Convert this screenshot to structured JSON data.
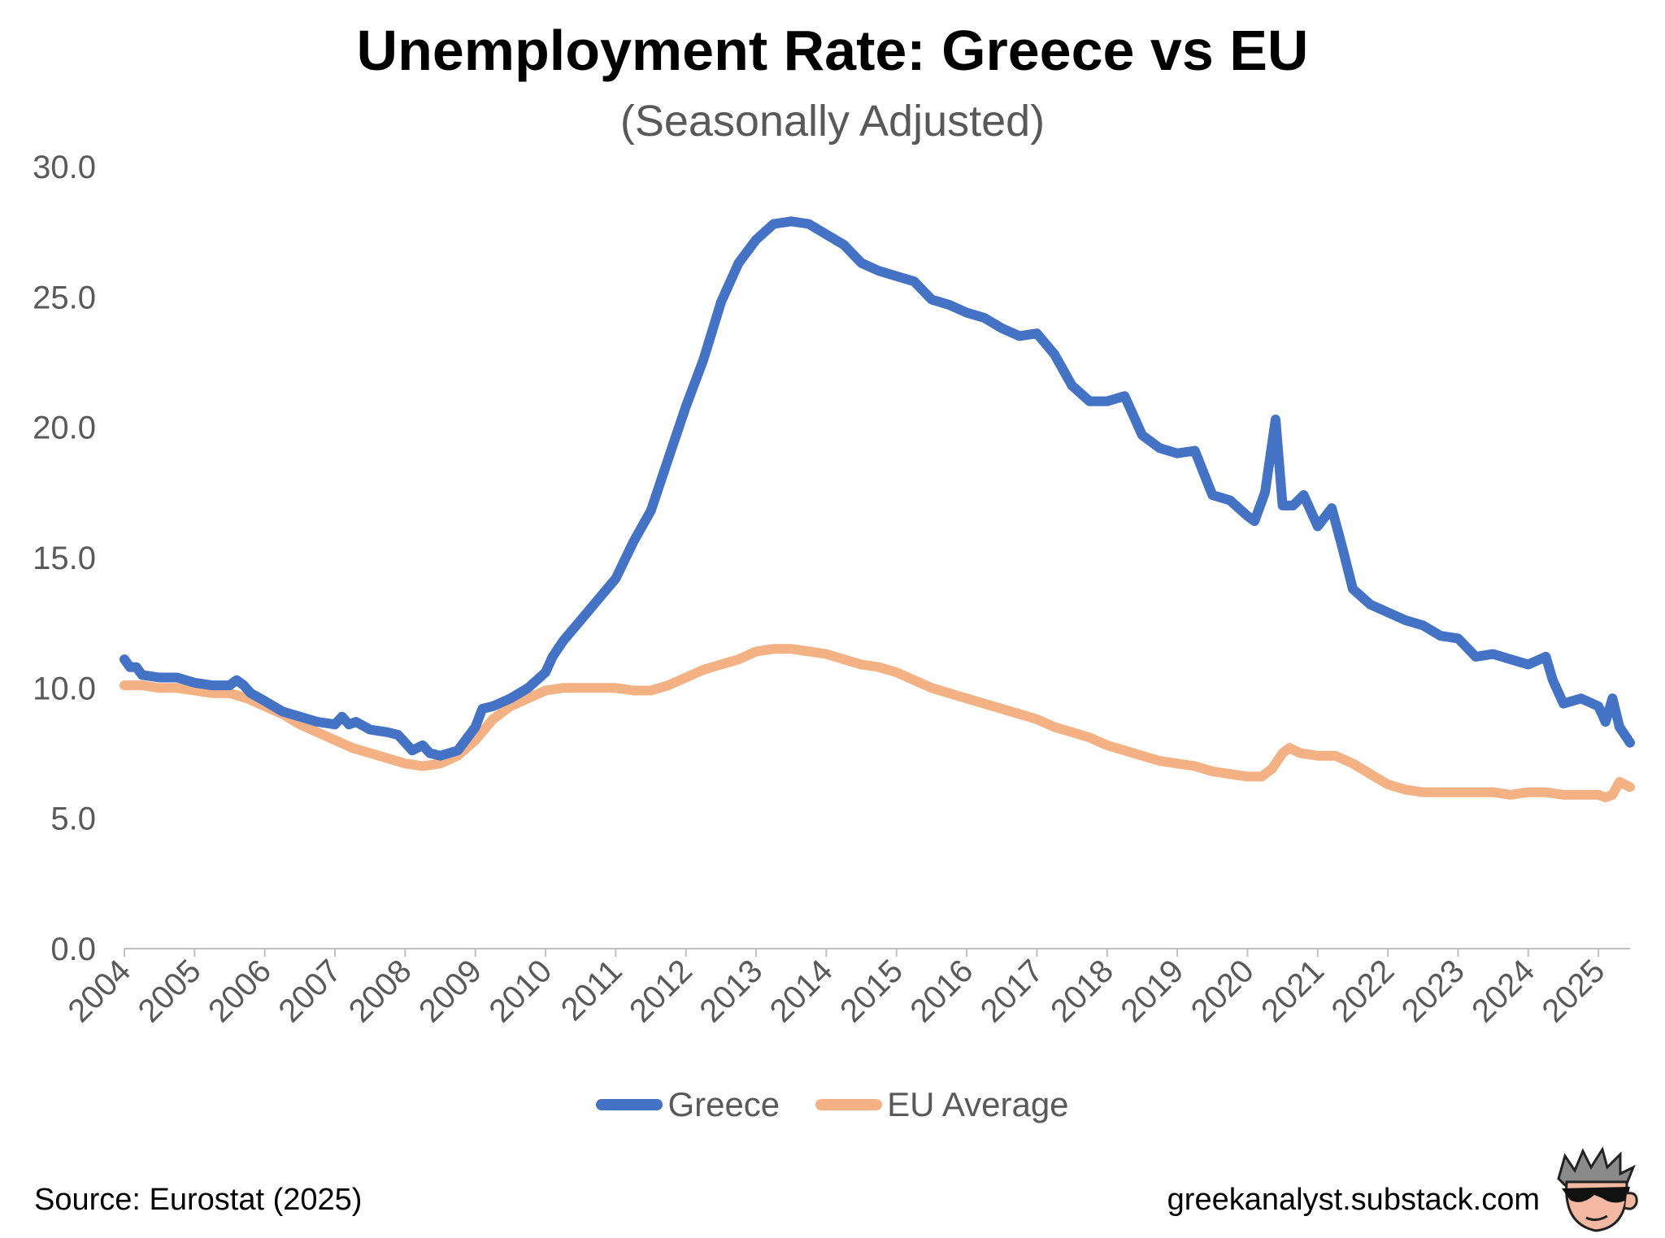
{
  "title": "Unemployment Rate: Greece vs EU",
  "subtitle": "(Seasonally Adjusted)",
  "source": "Source: Eurostat (2025)",
  "site": "greekanalyst.substack.com",
  "chart_data": {
    "type": "line",
    "ylim": [
      0,
      30
    ],
    "yticks": [
      "0.0",
      "5.0",
      "10.0",
      "15.0",
      "20.0",
      "25.0",
      "30.0"
    ],
    "xlim": [
      2004,
      2025.45
    ],
    "xticks": [
      "2004",
      "2005",
      "2006",
      "2007",
      "2008",
      "2009",
      "2010",
      "2011",
      "2012",
      "2013",
      "2014",
      "2015",
      "2016",
      "2017",
      "2018",
      "2019",
      "2020",
      "2021",
      "2022",
      "2023",
      "2024",
      "2025"
    ],
    "legend": "bottom",
    "grid": false,
    "series": [
      {
        "name": "Greece",
        "color": "#4472C4",
        "x": [
          2004.0,
          2004.08,
          2004.17,
          2004.25,
          2004.5,
          2004.75,
          2005.0,
          2005.25,
          2005.5,
          2005.6,
          2005.7,
          2005.8,
          2006.0,
          2006.25,
          2006.5,
          2006.75,
          2007.0,
          2007.1,
          2007.2,
          2007.3,
          2007.5,
          2007.75,
          2007.9,
          2008.0,
          2008.1,
          2008.25,
          2008.35,
          2008.5,
          2008.75,
          2009.0,
          2009.1,
          2009.25,
          2009.5,
          2009.75,
          2010.0,
          2010.1,
          2010.25,
          2010.5,
          2010.75,
          2011.0,
          2011.25,
          2011.5,
          2011.75,
          2012.0,
          2012.25,
          2012.5,
          2012.75,
          2013.0,
          2013.25,
          2013.5,
          2013.75,
          2014.0,
          2014.25,
          2014.5,
          2014.75,
          2015.0,
          2015.25,
          2015.5,
          2015.75,
          2016.0,
          2016.25,
          2016.5,
          2016.75,
          2017.0,
          2017.25,
          2017.5,
          2017.75,
          2018.0,
          2018.25,
          2018.5,
          2018.75,
          2019.0,
          2019.25,
          2019.5,
          2019.75,
          2020.0,
          2020.1,
          2020.25,
          2020.4,
          2020.5,
          2020.65,
          2020.8,
          2021.0,
          2021.2,
          2021.35,
          2021.5,
          2021.75,
          2022.0,
          2022.25,
          2022.5,
          2022.75,
          2023.0,
          2023.25,
          2023.5,
          2023.75,
          2024.0,
          2024.25,
          2024.35,
          2024.5,
          2024.75,
          2025.0,
          2025.1,
          2025.2,
          2025.3,
          2025.45
        ],
        "values": [
          11.1,
          10.8,
          10.8,
          10.5,
          10.4,
          10.4,
          10.2,
          10.1,
          10.1,
          10.3,
          10.1,
          9.8,
          9.5,
          9.1,
          8.9,
          8.7,
          8.6,
          8.9,
          8.6,
          8.7,
          8.4,
          8.3,
          8.2,
          7.9,
          7.6,
          7.8,
          7.5,
          7.4,
          7.6,
          8.5,
          9.2,
          9.3,
          9.6,
          10.0,
          10.6,
          11.2,
          11.8,
          12.6,
          13.4,
          14.2,
          15.6,
          16.8,
          18.8,
          20.8,
          22.6,
          24.8,
          26.3,
          27.2,
          27.8,
          27.9,
          27.8,
          27.4,
          27.0,
          26.3,
          26.0,
          25.8,
          25.6,
          24.9,
          24.7,
          24.4,
          24.2,
          23.8,
          23.5,
          23.6,
          22.8,
          21.6,
          21.0,
          21.0,
          21.2,
          19.7,
          19.2,
          19.0,
          19.1,
          17.4,
          17.2,
          16.6,
          16.4,
          17.5,
          20.3,
          17.0,
          17.0,
          17.4,
          16.2,
          16.9,
          15.4,
          13.8,
          13.2,
          12.9,
          12.6,
          12.4,
          12.0,
          11.9,
          11.2,
          11.3,
          11.1,
          10.9,
          11.2,
          10.3,
          9.4,
          9.6,
          9.3,
          8.7,
          9.6,
          8.5,
          7.9
        ]
      },
      {
        "name": "EU Average",
        "color": "#F4B183",
        "x": [
          2004.0,
          2004.25,
          2004.5,
          2004.75,
          2005.0,
          2005.25,
          2005.5,
          2005.75,
          2006.0,
          2006.25,
          2006.5,
          2006.75,
          2007.0,
          2007.25,
          2007.5,
          2007.75,
          2008.0,
          2008.25,
          2008.5,
          2008.75,
          2009.0,
          2009.25,
          2009.5,
          2009.75,
          2010.0,
          2010.25,
          2010.5,
          2010.75,
          2011.0,
          2011.25,
          2011.5,
          2011.75,
          2012.0,
          2012.25,
          2012.5,
          2012.75,
          2013.0,
          2013.25,
          2013.5,
          2013.75,
          2014.0,
          2014.25,
          2014.5,
          2014.75,
          2015.0,
          2015.25,
          2015.5,
          2015.75,
          2016.0,
          2016.25,
          2016.5,
          2016.75,
          2017.0,
          2017.25,
          2017.5,
          2017.75,
          2018.0,
          2018.25,
          2018.5,
          2018.75,
          2019.0,
          2019.25,
          2019.5,
          2019.75,
          2020.0,
          2020.2,
          2020.35,
          2020.5,
          2020.6,
          2020.75,
          2021.0,
          2021.25,
          2021.5,
          2021.75,
          2022.0,
          2022.25,
          2022.5,
          2022.75,
          2023.0,
          2023.25,
          2023.5,
          2023.75,
          2024.0,
          2024.25,
          2024.5,
          2024.75,
          2025.0,
          2025.1,
          2025.2,
          2025.3,
          2025.45
        ],
        "values": [
          10.1,
          10.1,
          10.0,
          10.0,
          9.9,
          9.8,
          9.8,
          9.6,
          9.3,
          9.0,
          8.6,
          8.3,
          8.0,
          7.7,
          7.5,
          7.3,
          7.1,
          7.0,
          7.1,
          7.4,
          8.0,
          8.8,
          9.3,
          9.6,
          9.9,
          10.0,
          10.0,
          10.0,
          10.0,
          9.9,
          9.9,
          10.1,
          10.4,
          10.7,
          10.9,
          11.1,
          11.4,
          11.5,
          11.5,
          11.4,
          11.3,
          11.1,
          10.9,
          10.8,
          10.6,
          10.3,
          10.0,
          9.8,
          9.6,
          9.4,
          9.2,
          9.0,
          8.8,
          8.5,
          8.3,
          8.1,
          7.8,
          7.6,
          7.4,
          7.2,
          7.1,
          7.0,
          6.8,
          6.7,
          6.6,
          6.6,
          6.9,
          7.5,
          7.7,
          7.5,
          7.4,
          7.4,
          7.1,
          6.7,
          6.3,
          6.1,
          6.0,
          6.0,
          6.0,
          6.0,
          6.0,
          5.9,
          6.0,
          6.0,
          5.9,
          5.9,
          5.9,
          5.8,
          5.9,
          6.4,
          6.2
        ]
      }
    ]
  }
}
